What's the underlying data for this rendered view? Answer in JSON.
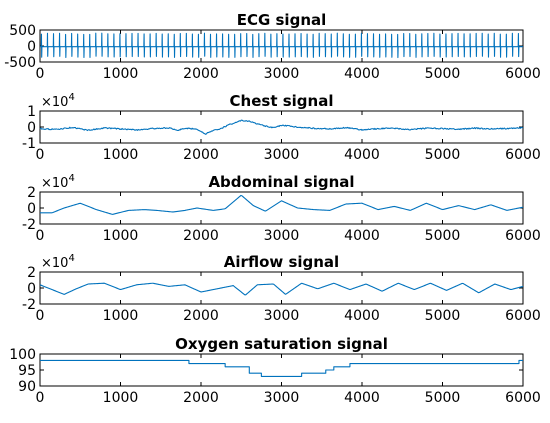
{
  "figure": {
    "series_color": "#0072bd"
  },
  "chart_data": [
    {
      "type": "line",
      "title": "ECG signal",
      "xlim": [
        0,
        6000
      ],
      "ylim": [
        -500,
        500
      ],
      "xticks": [
        0,
        1000,
        2000,
        3000,
        4000,
        5000,
        6000
      ],
      "yticks": [
        -500,
        0,
        500
      ],
      "ytick_labels": [
        "-500",
        "0",
        "500"
      ],
      "exponent_label": "",
      "series": [
        {
          "pattern": "periodic-spikes",
          "samples": 6000,
          "beat_period": 75,
          "baseline": -20,
          "spike_peak": 380,
          "spike_trough": -340
        }
      ]
    },
    {
      "type": "line",
      "title": "Chest signal",
      "xlim": [
        0,
        6000
      ],
      "ylim": [
        -10000,
        10000
      ],
      "xticks": [
        0,
        1000,
        2000,
        3000,
        4000,
        5000,
        6000
      ],
      "yticks": [
        -10000,
        0,
        10000
      ],
      "ytick_labels": [
        "-1",
        "0",
        "1"
      ],
      "exponent_label": "×10^4",
      "series": [
        {
          "x": [
            0,
            200,
            400,
            600,
            800,
            1000,
            1200,
            1400,
            1600,
            1700,
            1800,
            1950,
            2050,
            2150,
            2250,
            2350,
            2500,
            2600,
            2700,
            2800,
            2900,
            3000,
            3200,
            3400,
            3600,
            3800,
            4000,
            4200,
            4400,
            4600,
            4800,
            5000,
            5200,
            5400,
            5600,
            5800,
            6000
          ],
          "y": [
            -1000,
            -1500,
            -300,
            -2000,
            -600,
            -1200,
            -1800,
            -1000,
            -500,
            -2200,
            -800,
            -1200,
            -4500,
            -2000,
            -1000,
            1500,
            4000,
            3500,
            2000,
            500,
            -500,
            1000,
            0,
            -800,
            -1200,
            -400,
            -1800,
            -1000,
            -800,
            -1600,
            -800,
            -1000,
            -1400,
            -700,
            -1200,
            -900,
            -500
          ],
          "noise": 700
        }
      ]
    },
    {
      "type": "line",
      "title": "Abdominal signal",
      "xlim": [
        0,
        6000
      ],
      "ylim": [
        -20000,
        20000
      ],
      "xticks": [
        0,
        1000,
        2000,
        3000,
        4000,
        5000,
        6000
      ],
      "yticks": [
        -20000,
        0,
        20000
      ],
      "ytick_labels": [
        "-2",
        "0",
        "2"
      ],
      "exponent_label": "×10^4",
      "series": [
        {
          "x": [
            0,
            150,
            300,
            500,
            700,
            900,
            1100,
            1300,
            1450,
            1650,
            1800,
            1950,
            2150,
            2300,
            2500,
            2650,
            2800,
            3000,
            3200,
            3400,
            3600,
            3800,
            4000,
            4200,
            4400,
            4600,
            4800,
            5000,
            5200,
            5400,
            5600,
            5800,
            6000
          ],
          "y": [
            -6000,
            -6000,
            0,
            6000,
            -2000,
            -8000,
            -3000,
            -2000,
            -3000,
            -5000,
            -3000,
            0,
            -3000,
            -1000,
            16000,
            3000,
            -4000,
            9000,
            0,
            -2000,
            -3000,
            5000,
            6000,
            -2000,
            2000,
            -3000,
            6000,
            -2000,
            3000,
            -2000,
            4000,
            -3000,
            1000
          ]
        }
      ]
    },
    {
      "type": "line",
      "title": "Airflow signal",
      "xlim": [
        0,
        6000
      ],
      "ylim": [
        -20000,
        20000
      ],
      "xticks": [
        0,
        1000,
        2000,
        3000,
        4000,
        5000,
        6000
      ],
      "yticks": [
        -20000,
        0,
        20000
      ],
      "ytick_labels": [
        "-2",
        "0",
        "2"
      ],
      "exponent_label": "×10^4",
      "series": [
        {
          "x": [
            0,
            150,
            300,
            450,
            600,
            800,
            1000,
            1200,
            1400,
            1600,
            1800,
            2000,
            2200,
            2400,
            2550,
            2700,
            2900,
            3050,
            3250,
            3450,
            3650,
            3850,
            4050,
            4250,
            4450,
            4650,
            4850,
            5050,
            5250,
            5450,
            5650,
            5850,
            6000
          ],
          "y": [
            4000,
            -2000,
            -8000,
            -1000,
            5000,
            6000,
            -2000,
            4000,
            6000,
            2000,
            4000,
            -5000,
            -1000,
            3000,
            -9000,
            4000,
            5000,
            -8000,
            6000,
            -1000,
            6000,
            -2000,
            5000,
            -4000,
            6000,
            -2000,
            6000,
            -3000,
            6000,
            -6000,
            5000,
            -2000,
            2000
          ]
        }
      ]
    },
    {
      "type": "line",
      "title": "Oxygen saturation signal",
      "xlim": [
        0,
        6000
      ],
      "ylim": [
        90,
        100
      ],
      "xticks": [
        0,
        1000,
        2000,
        3000,
        4000,
        5000,
        6000
      ],
      "yticks": [
        90,
        95,
        100
      ],
      "ytick_labels": [
        "90",
        "95",
        "100"
      ],
      "exponent_label": "",
      "series": [
        {
          "step": true,
          "x": [
            0,
            1850,
            2000,
            2300,
            2600,
            2750,
            3250,
            3550,
            3650,
            3750,
            3850,
            3950,
            4200,
            5950,
            6000
          ],
          "y": [
            98,
            97,
            97,
            96,
            94,
            93,
            94,
            95,
            96,
            96,
            97,
            97,
            97,
            98,
            98
          ]
        }
      ]
    }
  ]
}
